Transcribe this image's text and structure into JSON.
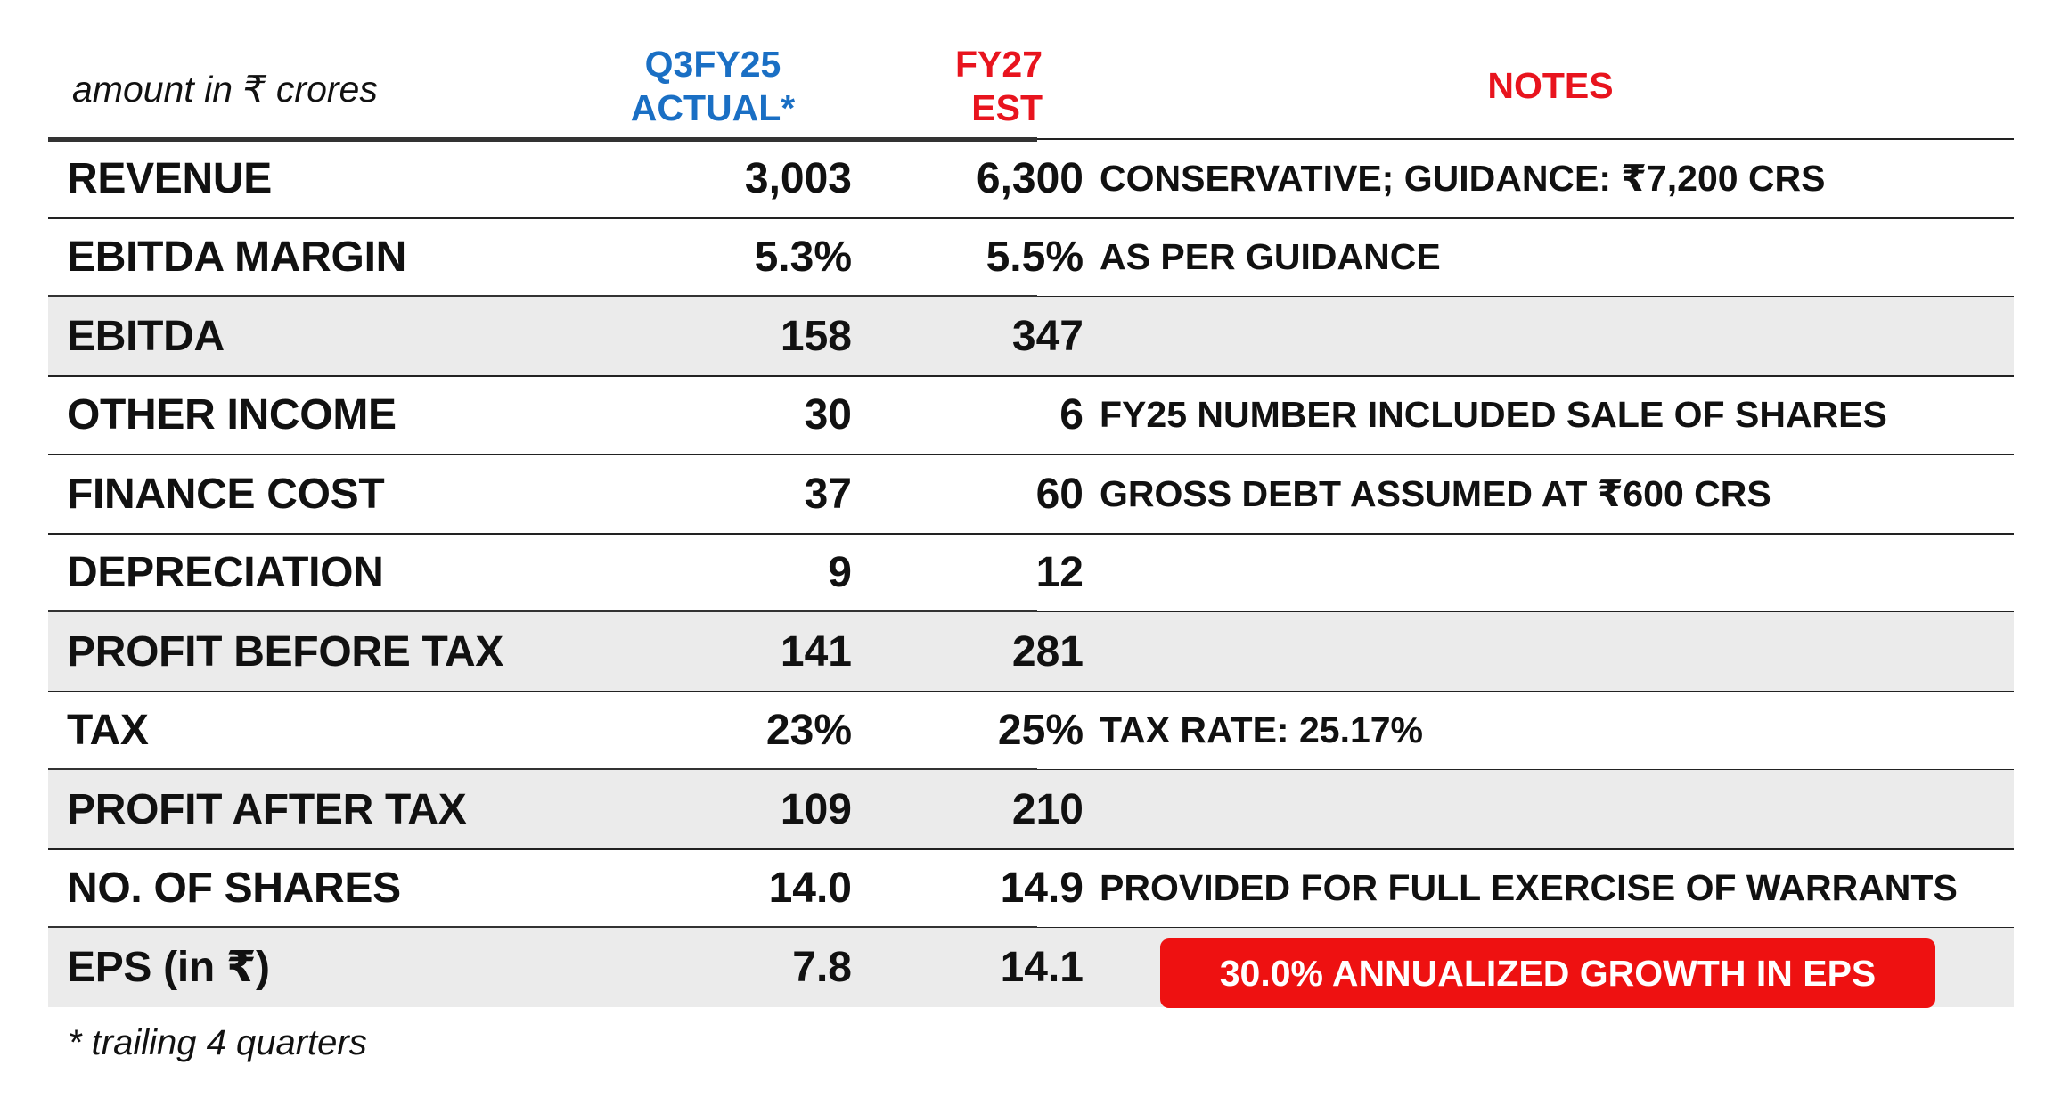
{
  "header": {
    "units": "amount in ₹ crores",
    "col1_line1": "Q3FY25",
    "col1_line2": "ACTUAL*",
    "col2_line1": "FY27",
    "col2_line2": "EST",
    "notes": "NOTES"
  },
  "rows": [
    {
      "label": "REVENUE",
      "actual": "3,003",
      "est": "6,300",
      "note": "CONSERVATIVE; GUIDANCE: ₹7,200 CRS"
    },
    {
      "label": "EBITDA MARGIN",
      "actual": "5.3%",
      "est": "5.5%",
      "note": "AS PER GUIDANCE"
    },
    {
      "label": "EBITDA",
      "actual": "158",
      "est": "347",
      "note": ""
    },
    {
      "label": "OTHER INCOME",
      "actual": "30",
      "est": "6",
      "note": "FY25 NUMBER INCLUDED SALE OF SHARES"
    },
    {
      "label": "FINANCE COST",
      "actual": "37",
      "est": "60",
      "note": "GROSS DEBT ASSUMED AT ₹600 CRS"
    },
    {
      "label": "DEPRECIATION",
      "actual": "9",
      "est": "12",
      "note": ""
    },
    {
      "label": "PROFIT BEFORE TAX",
      "actual": "141",
      "est": "281",
      "note": ""
    },
    {
      "label": "TAX",
      "actual": "23%",
      "est": "25%",
      "note": "TAX RATE: 25.17%"
    },
    {
      "label": "PROFIT AFTER TAX",
      "actual": "109",
      "est": "210",
      "note": ""
    },
    {
      "label": "NO. OF SHARES",
      "actual": "14.0",
      "est": "14.9",
      "note": "PROVIDED FOR FULL EXERCISE OF WARRANTS"
    },
    {
      "label": "EPS (in ₹)",
      "actual": "7.8",
      "est": "14.1",
      "note": ""
    }
  ],
  "badge": "30.0% ANNUALIZED GROWTH IN EPS",
  "footnote": "* trailing 4 quarters",
  "colors": {
    "actual_header": "#1a6fc4",
    "estimate_header": "#e8141e",
    "badge_background": "#ee1111",
    "shaded_row": "#ebebeb"
  }
}
